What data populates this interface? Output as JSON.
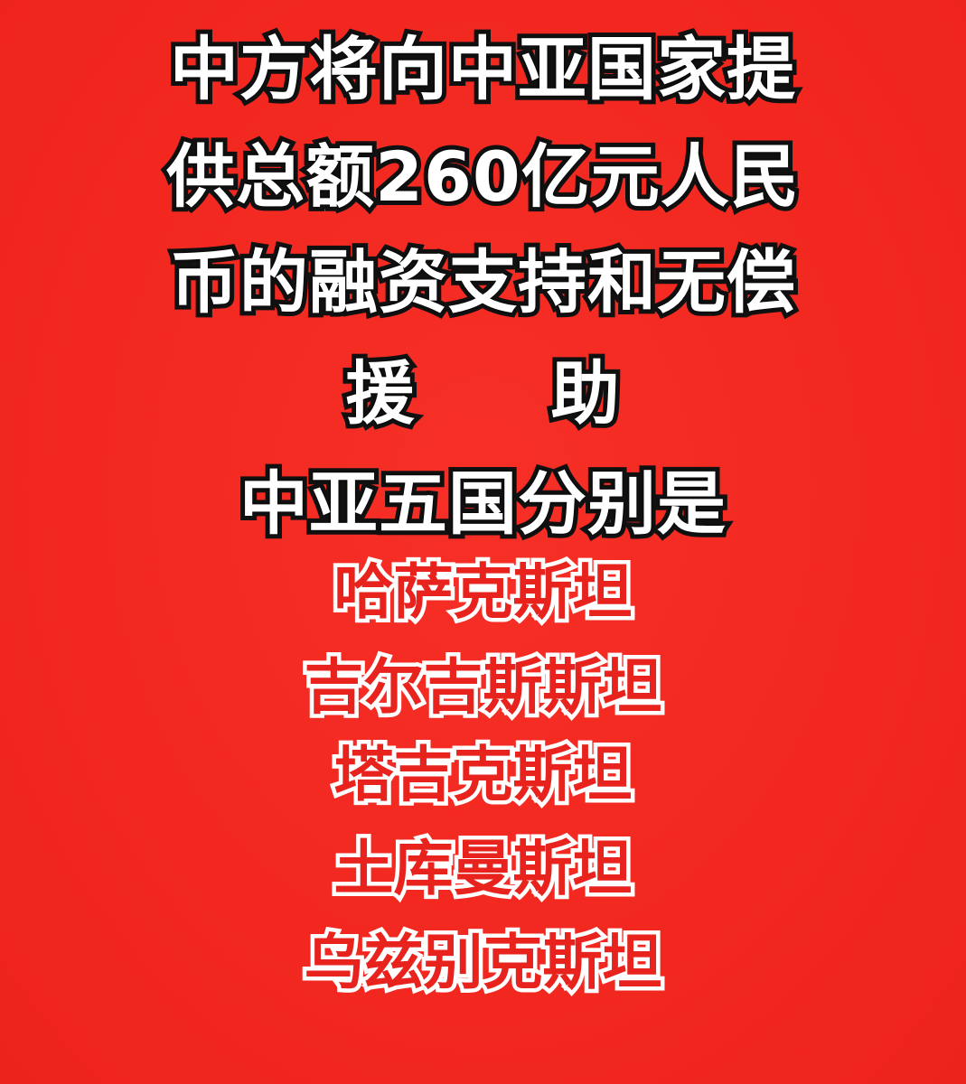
{
  "headline": {
    "line1": "中方将向中亚国家提",
    "line2": "供总额260亿元人民",
    "line3": "币的融资支持和无偿",
    "line4_a": "援",
    "line4_b": "助",
    "line5": "中亚五国分别是"
  },
  "countries": [
    "哈萨克斯坦",
    "吉尔吉斯斯坦",
    "塔吉克斯坦",
    "土库曼斯坦",
    "乌兹别克斯坦"
  ],
  "colors": {
    "background": "#f52a22",
    "headline_text": "#ffffff",
    "headline_outline": "#111111",
    "country_text": "#e8231d",
    "country_outline": "#ffffff"
  }
}
